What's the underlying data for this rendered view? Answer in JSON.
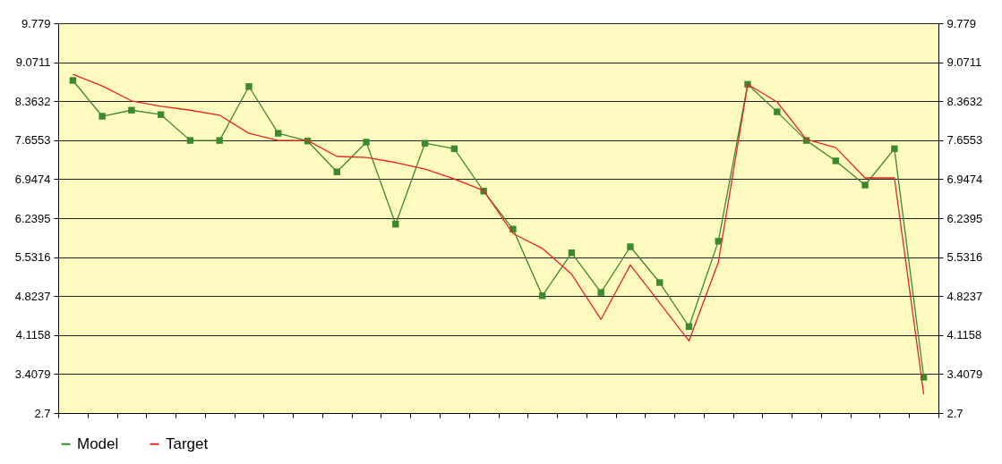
{
  "chart_data": {
    "type": "line",
    "categories": [
      null,
      null,
      null,
      null,
      null,
      null,
      null,
      null,
      null,
      null,
      null,
      null,
      null,
      null,
      null,
      null,
      null,
      null,
      null,
      null,
      null,
      null,
      null,
      null,
      null,
      null,
      null,
      null,
      null,
      null
    ],
    "series": [
      {
        "name": "Model",
        "color": "#3b8a2c",
        "values": [
          8.74,
          8.09,
          8.2,
          8.12,
          7.65,
          7.65,
          8.63,
          7.78,
          7.64,
          7.08,
          7.62,
          6.13,
          7.6,
          7.5,
          6.73,
          6.04,
          4.83,
          5.61,
          4.89,
          5.72,
          5.07,
          4.27,
          5.82,
          8.67,
          8.17,
          7.65,
          7.28,
          6.84,
          7.5,
          3.35
        ]
      },
      {
        "name": "Target",
        "color": "#e8251c",
        "marker": "none",
        "values": [
          8.85,
          8.64,
          8.37,
          8.27,
          8.2,
          8.11,
          7.78,
          7.65,
          7.65,
          7.36,
          7.34,
          7.25,
          7.13,
          6.95,
          6.74,
          5.96,
          5.69,
          5.22,
          4.4,
          5.39,
          4.7,
          4.01,
          5.44,
          8.67,
          8.35,
          7.67,
          7.52,
          6.97,
          6.97,
          3.04
        ]
      }
    ],
    "ylim": [
      2.7,
      9.779
    ],
    "yticks": [
      2.7,
      3.4079,
      4.1158,
      4.8237,
      5.5316,
      6.2395,
      6.9474,
      7.6553,
      8.3632,
      9.0711,
      9.779
    ],
    "y2lim": [
      2.7,
      9.779
    ],
    "y2ticks": [
      2.7,
      3.4079,
      4.1158,
      4.8237,
      5.5316,
      6.2395,
      6.9474,
      7.6553,
      8.3632,
      9.0711,
      9.779
    ],
    "tick_labels": "y",
    "grid": "y",
    "legend": "bottom",
    "marker": "square",
    "line_style": "solid"
  }
}
